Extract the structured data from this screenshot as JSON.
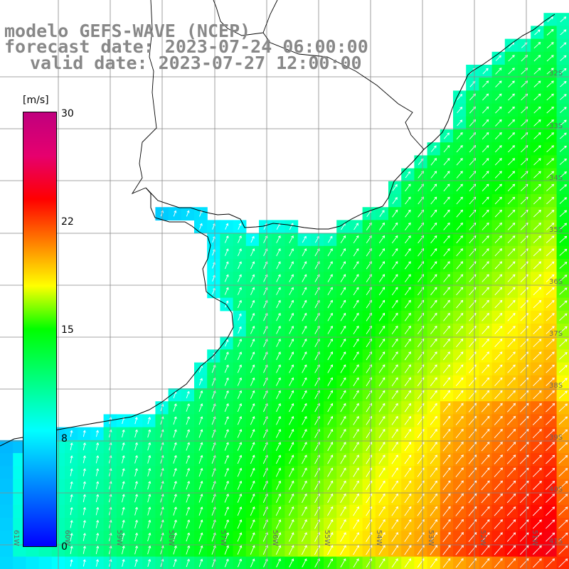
{
  "title": {
    "line1": "modelo GEFS-WAVE (NCEP)",
    "line2": "forecast date: 2023-07-24 06:00:00",
    "line3": "valid date: 2023-07-27 12:00:00"
  },
  "colorbar": {
    "unit": "[m/s]",
    "min": 0,
    "max": 30,
    "ticks": [
      "30",
      "22",
      "15",
      "8",
      "0"
    ],
    "colors": [
      "#0000ff",
      "#00c0ff",
      "#00ffff",
      "#00ff00",
      "#ffff00",
      "#ff8000",
      "#ff0000",
      "#c0007e"
    ]
  },
  "map": {
    "lat_labels": [
      "32S",
      "33S",
      "34S",
      "35S",
      "36S",
      "37S",
      "38S",
      "39S",
      "40S",
      "41S"
    ],
    "lon_labels": [
      "61W",
      "60W",
      "59W",
      "58W",
      "57W",
      "56W",
      "55W",
      "54W",
      "53W",
      "52W",
      "51W"
    ],
    "colors": {
      "land": "#ffffff",
      "grid": "#888888",
      "coast": "#000000",
      "arrow": "#ffffff"
    },
    "arrow_direction": "north-east"
  }
}
